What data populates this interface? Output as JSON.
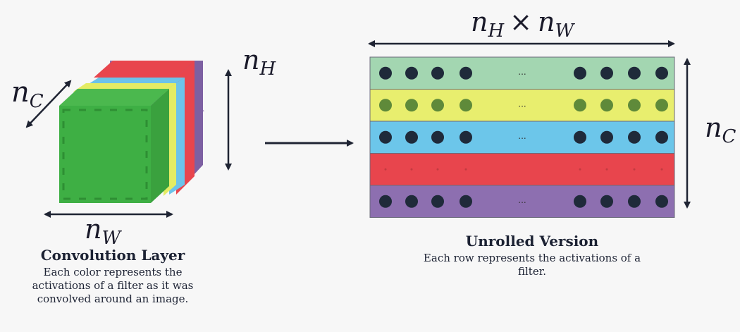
{
  "left": {
    "title": "Convolution Layer",
    "description": "Each color represents the activations of a filter as it was convolved around an image.",
    "labels": {
      "height": {
        "main": "n",
        "sub": "H"
      },
      "width": {
        "main": "n",
        "sub": "W"
      },
      "channels": {
        "main": "n",
        "sub": "C"
      }
    },
    "cube_layers": [
      {
        "name": "purple",
        "color": "#8d6fb0"
      },
      {
        "name": "red",
        "color": "#e8454d"
      },
      {
        "name": "blue",
        "color": "#6cc3ea"
      },
      {
        "name": "yellow",
        "color": "#e4ec63"
      },
      {
        "name": "green",
        "color": "#3eaf44"
      }
    ]
  },
  "right": {
    "title": "Unrolled Version",
    "description": "Each row represents the activations of a filter.",
    "top_label": {
      "main_a": "n",
      "sub_a": "H",
      "op": "×",
      "main_b": "n",
      "sub_b": "W"
    },
    "side_label": {
      "main": "n",
      "sub": "C"
    },
    "ellipsis": "...",
    "rows": [
      {
        "name": "green",
        "color": "#a3d6b1",
        "dot_color": "#1f2a3a"
      },
      {
        "name": "yellow",
        "color": "#e8ee6e",
        "dot_color": "#5f8a3a"
      },
      {
        "name": "blue",
        "color": "#6cc6ea",
        "dot_color": "#1f2a3a"
      },
      {
        "name": "red",
        "color": "#e8454d",
        "dot_color": "#c23a40"
      },
      {
        "name": "purple",
        "color": "#8d6fb0",
        "dot_color": "#1f2a3a"
      }
    ]
  },
  "colors": {
    "arrow": "#1f2433",
    "border": "#6b6b7b"
  }
}
